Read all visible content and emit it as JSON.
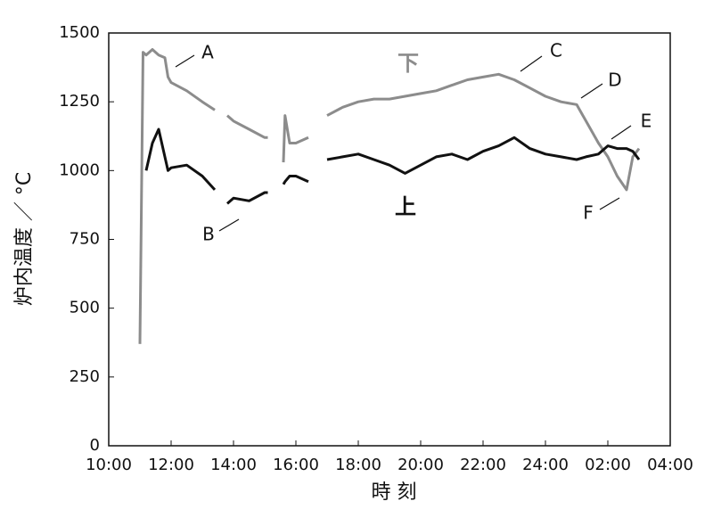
{
  "chart_data": {
    "type": "line",
    "xlabel": "時 刻",
    "ylabel": "炉内温度 ／ °C",
    "x": [
      11.0,
      11.1,
      11.2,
      11.4,
      11.6,
      11.8,
      11.9,
      12.0,
      12.5,
      13.0,
      13.4,
      13.55,
      13.8,
      14.0,
      14.5,
      15.0,
      15.1,
      15.35,
      15.6,
      15.65,
      15.8,
      16.0,
      16.4,
      16.7,
      17.0,
      17.5,
      18.0,
      18.5,
      19.0,
      19.5,
      20.0,
      20.5,
      21.0,
      21.5,
      22.0,
      22.5,
      23.0,
      23.5,
      24.0,
      24.5,
      25.0,
      25.3,
      25.7,
      26.0,
      26.3,
      26.6,
      26.8,
      27.0
    ],
    "series": [
      {
        "name": "下",
        "color": "#8c8c8c",
        "values": [
          370,
          1430,
          1420,
          1440,
          1420,
          1410,
          1340,
          1320,
          1290,
          1250,
          1220,
          null,
          1200,
          1180,
          1150,
          1120,
          1120,
          null,
          1030,
          1200,
          1100,
          1100,
          1120,
          null,
          1200,
          1230,
          1250,
          1260,
          1260,
          1270,
          1280,
          1290,
          1310,
          1330,
          1340,
          1350,
          1330,
          1300,
          1270,
          1250,
          1240,
          1180,
          1100,
          1050,
          980,
          930,
          1050,
          1080
        ]
      },
      {
        "name": "上",
        "color": "#111111",
        "values": [
          null,
          null,
          1000,
          1100,
          1150,
          1050,
          1000,
          1010,
          1020,
          980,
          930,
          null,
          880,
          900,
          890,
          920,
          920,
          null,
          950,
          960,
          980,
          980,
          960,
          null,
          1040,
          1050,
          1060,
          1040,
          1020,
          990,
          1020,
          1050,
          1060,
          1040,
          1070,
          1090,
          1120,
          1080,
          1060,
          1050,
          1040,
          1050,
          1060,
          1090,
          1080,
          1080,
          1070,
          1040
        ]
      }
    ],
    "annotations": [
      "A",
      "B",
      "C",
      "D",
      "E",
      "F"
    ],
    "xlim": [
      10,
      28
    ],
    "xticks": [
      {
        "value": 10,
        "label": "10:00"
      },
      {
        "value": 12,
        "label": "12:00"
      },
      {
        "value": 14,
        "label": "14:00"
      },
      {
        "value": 16,
        "label": "16:00"
      },
      {
        "value": 18,
        "label": "18:00"
      },
      {
        "value": 20,
        "label": "20:00"
      },
      {
        "value": 22,
        "label": "22:00"
      },
      {
        "value": 24,
        "label": "24:00"
      },
      {
        "value": 26,
        "label": "02:00"
      },
      {
        "value": 28,
        "label": "04:00"
      }
    ],
    "ylim": [
      0,
      1500
    ],
    "yticks": [
      0,
      250,
      500,
      750,
      1000,
      1250,
      1500
    ],
    "grid": false
  }
}
